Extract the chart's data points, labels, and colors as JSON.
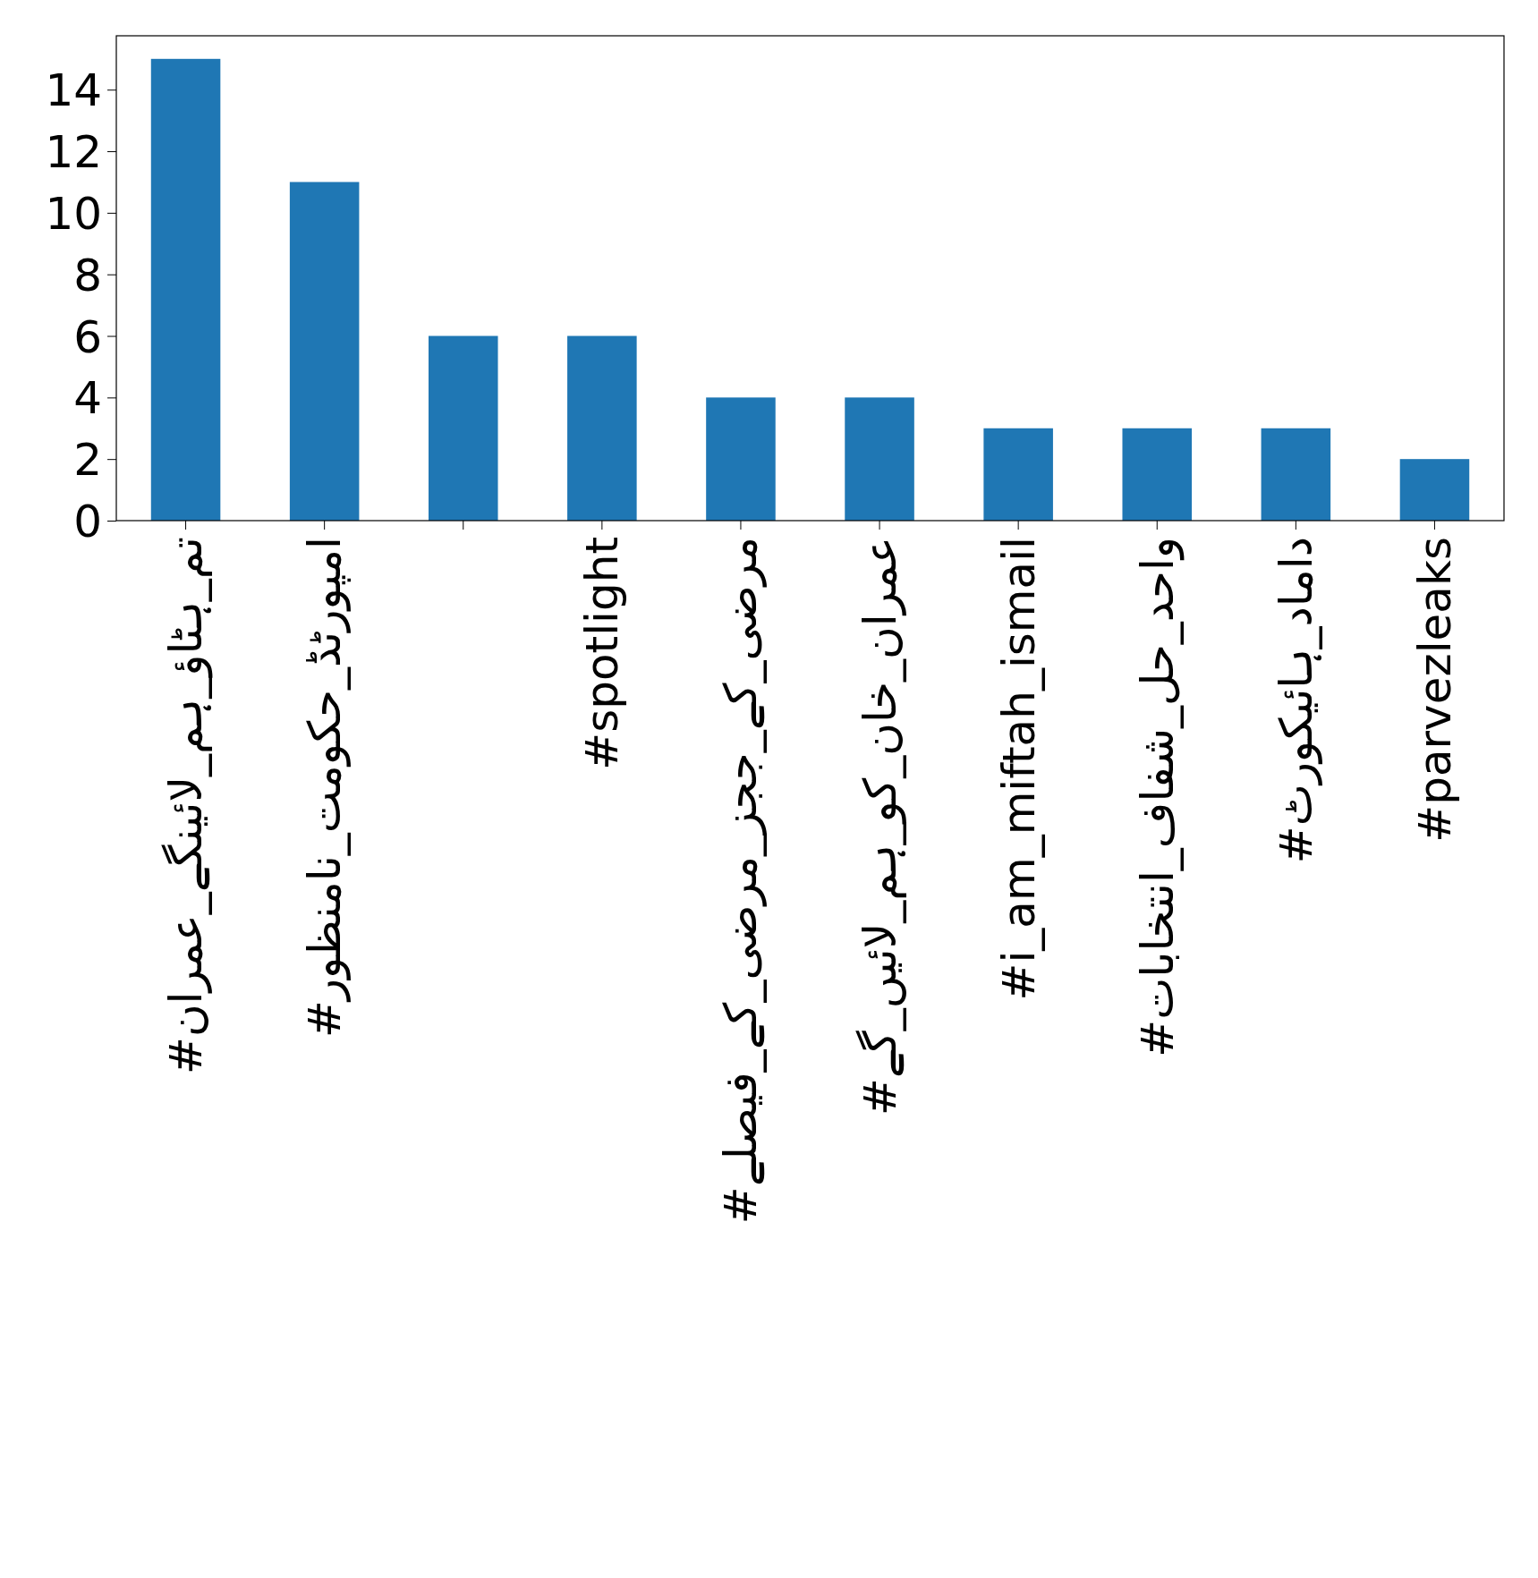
{
  "chart_data": {
    "type": "bar",
    "categories": [
      "#تم_ہٹاؤ_ہم_لائینگے_عمران",
      "#امپورٹڈ_حکومت_نامنظور",
      null,
      "#spotlight",
      "#مرضی_کے_ججز_مرضی_کے_فیصلے",
      "#عمران_خان_کو_ہم_لائیں_گے",
      "#i_am_miftah_ismail",
      "#واحد_حل_شفاف_انتخابات",
      "#داماد_ہائیکورٹ",
      "#parvezleaks"
    ],
    "values": [
      15,
      11,
      6,
      6,
      4,
      4,
      3,
      3,
      3,
      2
    ],
    "color": "#1f77b4",
    "ylim": [
      0,
      15.75
    ],
    "yticks": [
      0,
      2,
      4,
      6,
      8,
      10,
      12,
      14
    ],
    "grid": false
  }
}
